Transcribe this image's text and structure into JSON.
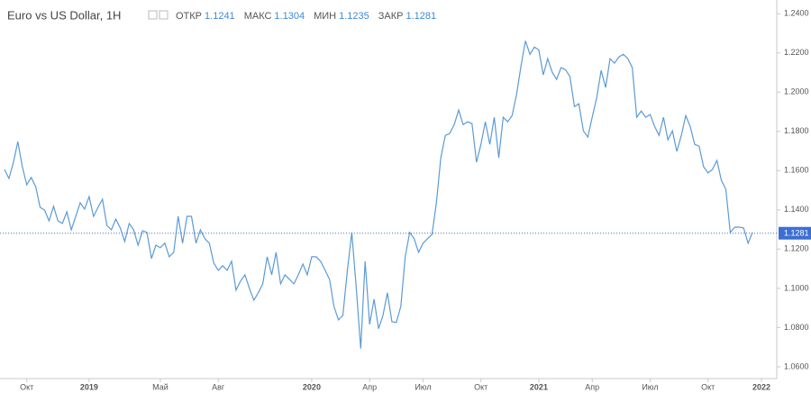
{
  "chart_data": {
    "type": "line",
    "title": "Euro vs US Dollar, 1Н",
    "ohlc": [
      {
        "label": "ОТКР",
        "value": 1.1241
      },
      {
        "label": "МАКС",
        "value": 1.1304
      },
      {
        "label": "МИН",
        "value": 1.1235
      },
      {
        "label": "ЗАКР",
        "value": 1.1281
      }
    ],
    "last_price": 1.1281,
    "color": "#5b9bd5",
    "ylim": [
      1.054,
      1.247
    ],
    "yticks": [
      {
        "value": 1.24,
        "label": "1.2400"
      },
      {
        "value": 1.22,
        "label": "1.2200"
      },
      {
        "value": 1.2,
        "label": "1.2000"
      },
      {
        "value": 1.18,
        "label": "1.1800"
      },
      {
        "value": 1.16,
        "label": "1.1600"
      },
      {
        "value": 1.14,
        "label": "1.1400"
      },
      {
        "value": 1.12,
        "label": "1.1200"
      },
      {
        "value": 1.1,
        "label": "1.1000"
      },
      {
        "value": 1.08,
        "label": "1.0800"
      },
      {
        "value": 1.06,
        "label": "1.0600"
      }
    ],
    "categories": [
      null,
      null,
      null,
      null,
      null,
      "Окт",
      null,
      null,
      null,
      null,
      null,
      null,
      null,
      null,
      null,
      null,
      null,
      null,
      null,
      "2019",
      null,
      null,
      null,
      null,
      null,
      null,
      null,
      null,
      null,
      null,
      null,
      null,
      null,
      null,
      null,
      "Май",
      null,
      null,
      null,
      null,
      null,
      null,
      null,
      null,
      null,
      null,
      null,
      null,
      "Авг",
      null,
      null,
      null,
      null,
      null,
      null,
      null,
      null,
      null,
      null,
      null,
      null,
      null,
      null,
      null,
      null,
      null,
      null,
      null,
      null,
      "2020",
      null,
      null,
      null,
      null,
      null,
      null,
      null,
      null,
      null,
      null,
      null,
      null,
      "Апр",
      null,
      null,
      null,
      null,
      null,
      null,
      null,
      null,
      null,
      null,
      null,
      "Июл",
      null,
      null,
      null,
      null,
      null,
      null,
      null,
      null,
      null,
      null,
      null,
      null,
      "Окт",
      null,
      null,
      null,
      null,
      null,
      null,
      null,
      null,
      null,
      null,
      null,
      null,
      "2021",
      null,
      null,
      null,
      null,
      null,
      null,
      null,
      null,
      null,
      null,
      null,
      "Апр",
      null,
      null,
      null,
      null,
      null,
      null,
      null,
      null,
      null,
      null,
      null,
      null,
      "Июл",
      null,
      null,
      null,
      null,
      null,
      null,
      null,
      null,
      null,
      null,
      null,
      null,
      "Окт",
      null,
      null,
      null,
      null,
      null,
      null,
      null,
      null,
      null,
      null,
      null,
      "2022"
    ],
    "values": [
      1.1606,
      1.156,
      1.1643,
      1.1748,
      1.162,
      1.1528,
      1.1565,
      1.1519,
      1.1413,
      1.1399,
      1.1344,
      1.1418,
      1.1344,
      1.1331,
      1.139,
      1.1298,
      1.1367,
      1.1436,
      1.1404,
      1.1468,
      1.1367,
      1.1413,
      1.1454,
      1.1321,
      1.1298,
      1.1353,
      1.1308,
      1.1239,
      1.1331,
      1.1298,
      1.122,
      1.1294,
      1.1285,
      1.1152,
      1.122,
      1.1207,
      1.123,
      1.1161,
      1.1184,
      1.1367,
      1.123,
      1.1367,
      1.1367,
      1.123,
      1.1298,
      1.1253,
      1.123,
      1.1129,
      1.1092,
      1.1115,
      1.1092,
      1.1138,
      1.0991,
      1.1037,
      1.1069,
      1.1,
      1.094,
      1.0977,
      1.1023,
      1.1161,
      1.1069,
      1.1184,
      1.1023,
      1.1069,
      1.1046,
      1.1023,
      1.1069,
      1.1124,
      1.1069,
      1.1161,
      1.1161,
      1.1138,
      1.1092,
      1.1046,
      1.0908,
      1.0839,
      1.0862,
      1.1092,
      1.1285,
      1.1,
      1.0693,
      1.1138,
      1.0816,
      1.0945,
      1.0794,
      1.0862,
      1.0977,
      1.083,
      1.0826,
      1.0908,
      1.1161,
      1.1285,
      1.1253,
      1.1184,
      1.123,
      1.1253,
      1.1275,
      1.1436,
      1.1666,
      1.178,
      1.179,
      1.1835,
      1.1909,
      1.1835,
      1.1849,
      1.184,
      1.1643,
      1.1734,
      1.1849,
      1.1734,
      1.1872,
      1.1666,
      1.1872,
      1.1849,
      1.1881,
      1.1987,
      1.2134,
      1.2262,
      1.2193,
      1.223,
      1.2216,
      1.2088,
      1.2171,
      1.2102,
      1.2065,
      1.2125,
      1.2115,
      1.2079,
      1.1927,
      1.1941,
      1.1803,
      1.1771,
      1.1872,
      1.1973,
      1.2111,
      1.2024,
      1.2171,
      1.2148,
      1.218,
      1.2193,
      1.2171,
      1.2125,
      1.1872,
      1.1904,
      1.1872,
      1.1886,
      1.1826,
      1.178,
      1.1872,
      1.1757,
      1.1803,
      1.1698,
      1.178,
      1.1881,
      1.1826,
      1.1734,
      1.1725,
      1.162,
      1.1588,
      1.1606,
      1.1652,
      1.1551,
      1.1505,
      1.1285,
      1.1312,
      1.1312,
      1.1308,
      1.123,
      1.1285,
      null,
      null
    ]
  }
}
